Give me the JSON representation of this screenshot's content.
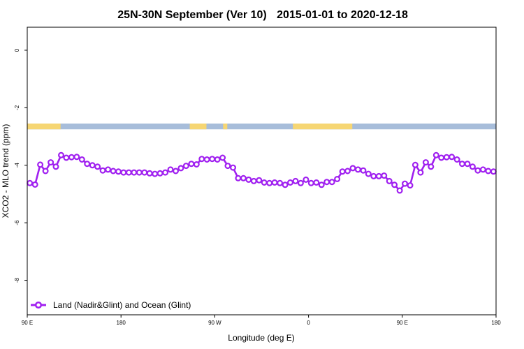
{
  "chart_data": {
    "type": "line",
    "title_region": "25N-30N September (Ver 10)",
    "title_dates": "2015-01-01 to 2020-12-18",
    "xlabel": "Longitude (deg E)",
    "ylabel": "XCO2 - MLO trend (ppm)",
    "x_ticks": [
      {
        "value": 90,
        "label": "90 E"
      },
      {
        "value": 180,
        "label": "180"
      },
      {
        "value": 270,
        "label": "90 W"
      },
      {
        "value": 360,
        "label": "0"
      },
      {
        "value": 450,
        "label": "90 E"
      },
      {
        "value": 540,
        "label": "180"
      }
    ],
    "y_ticks": [
      0,
      -2,
      -4,
      -6,
      -8
    ],
    "xlim": [
      90,
      540
    ],
    "ylim": [
      -9.2,
      0.8
    ],
    "land_mask": {
      "y_range": [
        -2.75,
        -2.55
      ],
      "ocean_color": "#a7bdda",
      "land_color": "#f6d673",
      "land_segments": [
        [
          90,
          122
        ],
        [
          246,
          262
        ],
        [
          278,
          282
        ],
        [
          345,
          402
        ]
      ]
    },
    "series": [
      {
        "name": "Land (Nadir&Glint) and Ocean (Glint)",
        "color": "#a020f0",
        "x": [
          92.5,
          97.5,
          102.5,
          107.5,
          112.5,
          117.5,
          122.5,
          127.5,
          132.5,
          137.5,
          142.5,
          147.5,
          152.5,
          157.5,
          162.5,
          167.5,
          172.5,
          177.5,
          182.5,
          187.5,
          192.5,
          197.5,
          202.5,
          207.5,
          212.5,
          217.5,
          222.5,
          227.5,
          232.5,
          237.5,
          242.5,
          247.5,
          252.5,
          257.5,
          262.5,
          267.5,
          272.5,
          277.5,
          282.5,
          287.5,
          292.5,
          297.5,
          302.5,
          307.5,
          312.5,
          317.5,
          322.5,
          327.5,
          332.5,
          337.5,
          342.5,
          347.5,
          352.5,
          357.5,
          362.5,
          367.5,
          372.5,
          377.5,
          382.5,
          387.5,
          392.5,
          397.5,
          402.5,
          407.5,
          412.5,
          417.5,
          422.5,
          427.5,
          432.5,
          437.5,
          442.5,
          447.5,
          452.5,
          457.5,
          462.5,
          467.5,
          472.5,
          477.5,
          482.5,
          487.5,
          492.5,
          497.5,
          502.5,
          507.5,
          512.5,
          517.5,
          522.5,
          527.5,
          532.5,
          537.5
        ],
        "values": [
          -4.62,
          -4.67,
          -3.98,
          -4.2,
          -3.9,
          -4.05,
          -3.65,
          -3.74,
          -3.72,
          -3.71,
          -3.8,
          -3.95,
          -4.0,
          -4.05,
          -4.18,
          -4.15,
          -4.2,
          -4.22,
          -4.25,
          -4.25,
          -4.25,
          -4.25,
          -4.25,
          -4.28,
          -4.3,
          -4.28,
          -4.25,
          -4.15,
          -4.2,
          -4.1,
          -4.02,
          -3.95,
          -3.97,
          -3.78,
          -3.8,
          -3.78,
          -3.8,
          -3.74,
          -4.02,
          -4.08,
          -4.45,
          -4.45,
          -4.5,
          -4.55,
          -4.52,
          -4.6,
          -4.62,
          -4.6,
          -4.62,
          -4.68,
          -4.6,
          -4.55,
          -4.62,
          -4.5,
          -4.62,
          -4.6,
          -4.68,
          -4.58,
          -4.58,
          -4.48,
          -4.22,
          -4.2,
          -4.1,
          -4.15,
          -4.18,
          -4.3,
          -4.38,
          -4.38,
          -4.36,
          -4.55,
          -4.68,
          -4.88,
          -4.64,
          -4.7,
          -3.99,
          -4.25,
          -3.9,
          -4.05,
          -3.65,
          -3.74,
          -3.72,
          -3.71,
          -3.8,
          -3.95,
          -3.95,
          -4.05,
          -4.18,
          -4.15,
          -4.2,
          -4.22
        ]
      }
    ],
    "legend": {
      "position": "bottom-left",
      "entries": [
        "Land (Nadir&Glint) and Ocean (Glint)"
      ]
    },
    "grid": false
  }
}
